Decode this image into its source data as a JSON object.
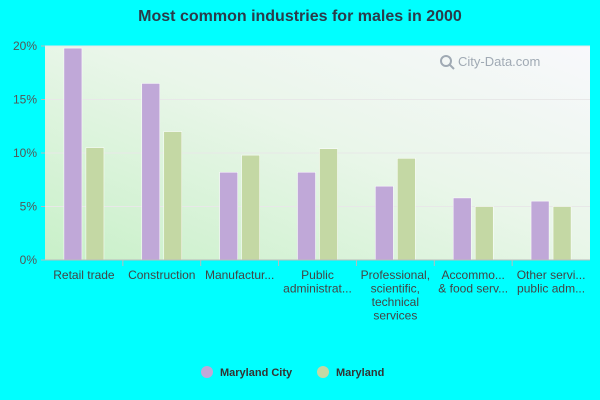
{
  "chart_data": {
    "type": "bar",
    "title": "Most common industries for males in 2000",
    "xlabel": "",
    "ylabel": "",
    "ylim": [
      0,
      20
    ],
    "yticks": [
      0,
      5,
      10,
      15,
      20
    ],
    "ytick_labels": [
      "0%",
      "5%",
      "10%",
      "15%",
      "20%"
    ],
    "categories": [
      [
        "Retail trade"
      ],
      [
        "Construction"
      ],
      [
        "Manufactur..."
      ],
      [
        "Public",
        "administrat..."
      ],
      [
        "Professional,",
        "scientific,",
        "technical",
        "services"
      ],
      [
        "Accommo...",
        "& food serv..."
      ],
      [
        "Other servi...",
        "public adm..."
      ]
    ],
    "series": [
      {
        "name": "Maryland City",
        "color": "#c0a8d8",
        "values": [
          19.8,
          16.5,
          8.2,
          8.2,
          6.9,
          5.8,
          5.5
        ]
      },
      {
        "name": "Maryland",
        "color": "#c4d8a4",
        "values": [
          10.5,
          12.0,
          9.8,
          10.4,
          9.5,
          5.0,
          5.0
        ]
      }
    ],
    "legend_position": "bottom-center",
    "grid": true
  },
  "watermark": {
    "text": "City-Data.com",
    "icon": "magnifier-icon"
  }
}
